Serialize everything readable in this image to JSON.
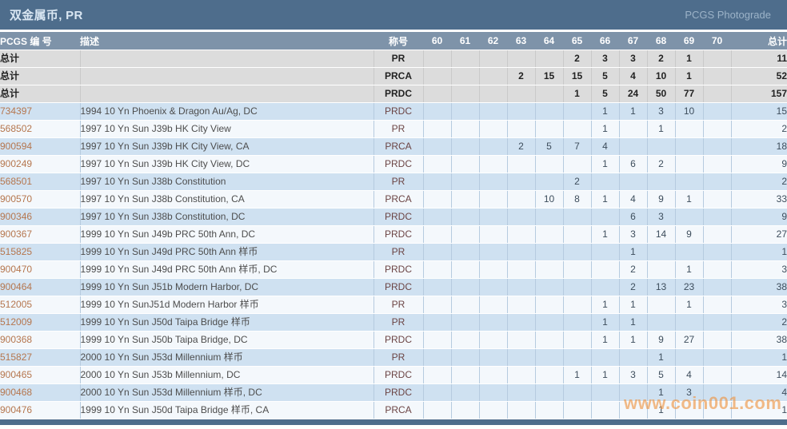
{
  "title_bar": {
    "title": "双金属币, PR",
    "photograde_link": "PCGS Photograde"
  },
  "table": {
    "columns": [
      "PCGS 编 号",
      "描述",
      "称号",
      "60",
      "61",
      "62",
      "63",
      "64",
      "65",
      "66",
      "67",
      "68",
      "69",
      "70",
      "总计"
    ],
    "grade_keys": [
      "60",
      "61",
      "62",
      "63",
      "64",
      "65",
      "66",
      "67",
      "68",
      "69",
      "70"
    ],
    "summary_rows": [
      {
        "label": "总计",
        "description": "",
        "designation": "PR",
        "grades": {
          "65": 2,
          "66": 3,
          "67": 3,
          "68": 2,
          "69": 1
        },
        "total": 11
      },
      {
        "label": "总计",
        "description": "",
        "designation": "PRCA",
        "grades": {
          "63": 2,
          "64": 15,
          "65": 15,
          "66": 5,
          "67": 4,
          "68": 10,
          "69": 1
        },
        "total": 52
      },
      {
        "label": "总计",
        "description": "",
        "designation": "PRDC",
        "grades": {
          "65": 1,
          "66": 5,
          "67": 24,
          "68": 50,
          "69": 77
        },
        "total": 157
      }
    ],
    "rows": [
      {
        "pcgs_number": "734397",
        "description": "1994 10 Yn Phoenix & Dragon Au/Ag, DC",
        "designation": "PRDC",
        "grades": {
          "66": 1,
          "67": 1,
          "68": 3,
          "69": 10
        },
        "total": 15
      },
      {
        "pcgs_number": "568502",
        "description": "1997 10 Yn Sun J39b HK City View",
        "designation": "PR",
        "grades": {
          "66": 1,
          "68": 1
        },
        "total": 2
      },
      {
        "pcgs_number": "900594",
        "description": "1997 10 Yn Sun J39b HK City View, CA",
        "designation": "PRCA",
        "grades": {
          "63": 2,
          "64": 5,
          "65": 7,
          "66": 4
        },
        "total": 18
      },
      {
        "pcgs_number": "900249",
        "description": "1997 10 Yn Sun J39b HK City View, DC",
        "designation": "PRDC",
        "grades": {
          "66": 1,
          "67": 6,
          "68": 2
        },
        "total": 9
      },
      {
        "pcgs_number": "568501",
        "description": "1997 10 Yn Sun J38b Constitution",
        "designation": "PR",
        "grades": {
          "65": 2
        },
        "total": 2
      },
      {
        "pcgs_number": "900570",
        "description": "1997 10 Yn Sun J38b Constitution, CA",
        "designation": "PRCA",
        "grades": {
          "64": 10,
          "65": 8,
          "66": 1,
          "67": 4,
          "68": 9,
          "69": 1
        },
        "total": 33
      },
      {
        "pcgs_number": "900346",
        "description": "1997 10 Yn Sun J38b Constitution, DC",
        "designation": "PRDC",
        "grades": {
          "67": 6,
          "68": 3
        },
        "total": 9
      },
      {
        "pcgs_number": "900367",
        "description": "1999 10 Yn Sun J49b PRC 50th Ann, DC",
        "designation": "PRDC",
        "grades": {
          "66": 1,
          "67": 3,
          "68": 14,
          "69": 9
        },
        "total": 27
      },
      {
        "pcgs_number": "515825",
        "description": "1999 10 Yn Sun J49d PRC 50th Ann 样币",
        "designation": "PR",
        "grades": {
          "67": 1
        },
        "total": 1
      },
      {
        "pcgs_number": "900470",
        "description": "1999 10 Yn Sun J49d PRC 50th Ann 样币, DC",
        "designation": "PRDC",
        "grades": {
          "67": 2,
          "69": 1
        },
        "total": 3
      },
      {
        "pcgs_number": "900464",
        "description": "1999 10 Yn Sun J51b Modern Harbor, DC",
        "designation": "PRDC",
        "grades": {
          "67": 2,
          "68": 13,
          "69": 23
        },
        "total": 38
      },
      {
        "pcgs_number": "512005",
        "description": "1999 10 Yn SunJ51d Modern Harbor 样币",
        "designation": "PR",
        "grades": {
          "66": 1,
          "67": 1,
          "69": 1
        },
        "total": 3
      },
      {
        "pcgs_number": "512009",
        "description": "1999 10 Yn Sun J50d Taipa Bridge 样币",
        "designation": "PR",
        "grades": {
          "66": 1,
          "67": 1
        },
        "total": 2
      },
      {
        "pcgs_number": "900368",
        "description": "1999 10 Yn Sun J50b Taipa Bridge, DC",
        "designation": "PRDC",
        "grades": {
          "66": 1,
          "67": 1,
          "68": 9,
          "69": 27
        },
        "total": 38
      },
      {
        "pcgs_number": "515827",
        "description": "2000 10 Yn Sun J53d Millennium 样币",
        "designation": "PR",
        "grades": {
          "68": 1
        },
        "total": 1
      },
      {
        "pcgs_number": "900465",
        "description": "2000 10 Yn Sun J53b Millennium, DC",
        "designation": "PRDC",
        "grades": {
          "65": 1,
          "66": 1,
          "67": 3,
          "68": 5,
          "69": 4
        },
        "total": 14
      },
      {
        "pcgs_number": "900468",
        "description": "2000 10 Yn Sun J53d Millennium 样币, DC",
        "designation": "PRDC",
        "grades": {
          "68": 1,
          "69": 3
        },
        "total": 4
      },
      {
        "pcgs_number": "900476",
        "description": "1999 10 Yn Sun J50d Taipa Bridge 样币, CA",
        "designation": "PRCA",
        "grades": {
          "68": 1
        },
        "total": 1
      }
    ]
  },
  "watermark": {
    "text": "www.coin001.com"
  },
  "colors": {
    "title_bar_bg": "#4e6d8c",
    "header_bg": "#7e93a9",
    "summary_row_bg": "#dcdcdc",
    "row_blue_bg": "#cfe1f1",
    "row_white_bg": "#f4f8fc",
    "pcgs_number_link": "#b5764e",
    "designation_text": "#6b4444",
    "watermark": "#ef933f"
  }
}
